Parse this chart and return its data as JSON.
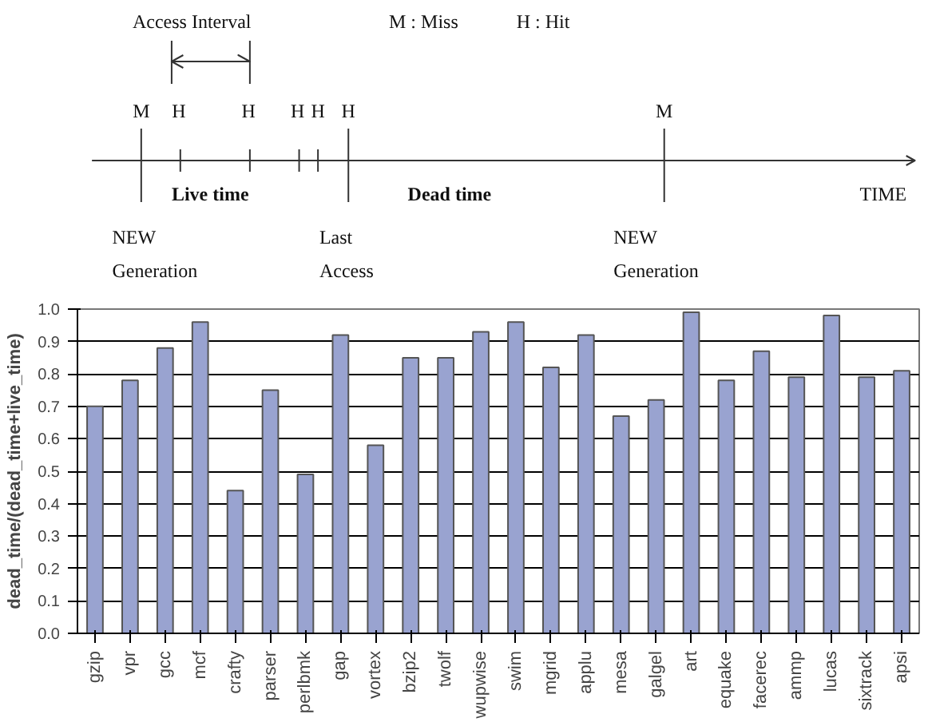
{
  "chart_data": [
    {
      "type": "other",
      "annotations": [
        "Access Interval",
        "M : Miss",
        "H : Hit",
        "M",
        "H",
        "H",
        "H",
        "H",
        "H",
        "M",
        "Live time",
        "Dead time",
        "TIME",
        "NEW\nGeneration",
        "Last\nAccess",
        "NEW\nGeneration"
      ]
    },
    {
      "type": "bar",
      "ylabel": "dead_time/(dead_time+live_time)",
      "categories": [
        "gzip",
        "vpr",
        "gcc",
        "mcf",
        "crafty",
        "parser",
        "perlbmk",
        "gap",
        "vortex",
        "bzip2",
        "twolf",
        "wupwise",
        "swim",
        "mgrid",
        "applu",
        "mesa",
        "galgel",
        "art",
        "equake",
        "facerec",
        "ammp",
        "lucas",
        "sixtrack",
        "apsi"
      ],
      "values": [
        0.7,
        0.78,
        0.88,
        0.96,
        0.44,
        0.75,
        0.49,
        0.92,
        0.58,
        0.85,
        0.85,
        0.93,
        0.96,
        0.82,
        0.92,
        0.67,
        0.72,
        0.99,
        0.78,
        0.87,
        0.79,
        0.98,
        0.79,
        0.81
      ],
      "color": "#99a3d0",
      "ylim": [
        0.0,
        1.0
      ],
      "yticks": [
        {
          "value": 0,
          "label": "0.0"
        },
        0.1,
        0.2,
        0.3,
        0.4,
        0.5,
        0.6,
        0.7,
        0.8,
        0.9,
        {
          "value": 1,
          "label": "1.0"
        }
      ],
      "grid": "y"
    }
  ]
}
